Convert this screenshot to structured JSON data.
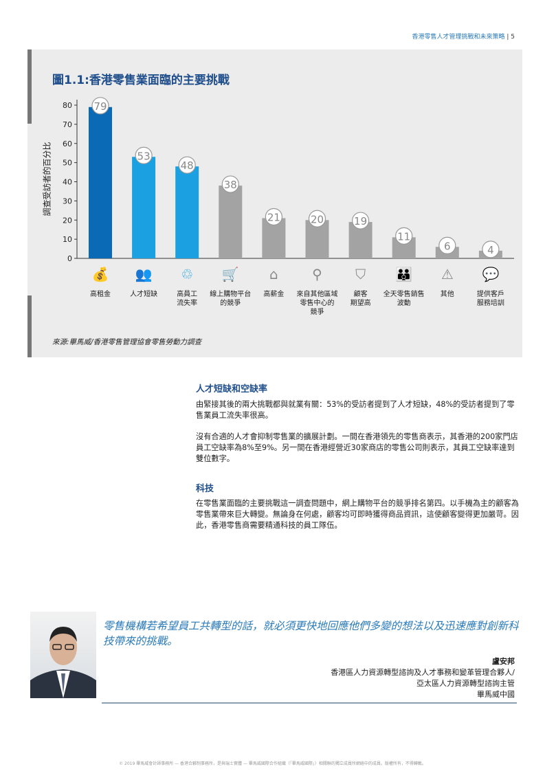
{
  "header": {
    "title": "香港零售人才管理挑戰和未來策略",
    "page": "5"
  },
  "figure": {
    "title": "圖1.1:香港零售業面臨的主要挑戰",
    "source": "來源:畢馬威/香港零售管理協會零售勞動力調查"
  },
  "chart_data": {
    "type": "bar",
    "title": "圖1.1:香港零售業面臨的主要挑戰",
    "ylabel": "調查受訪者的百分比",
    "ylim": [
      0,
      80
    ],
    "yticks": [
      0,
      10,
      20,
      30,
      40,
      50,
      60,
      70,
      80
    ],
    "categories": [
      "高租金",
      "人才短缺",
      "高員工流失率",
      "線上購物平台的競爭",
      "高薪金",
      "來自其他區域零售中心的競爭",
      "顧客期望高",
      "全天零售銷售波動",
      "其他",
      "提供客戶服務培訓"
    ],
    "category_lines": [
      [
        "高租金"
      ],
      [
        "人才短缺"
      ],
      [
        "高員工",
        "流失率"
      ],
      [
        "線上購物平台",
        "的競爭"
      ],
      [
        "高薪金"
      ],
      [
        "來自其他區域",
        "零售中心的",
        "競爭"
      ],
      [
        "顧客",
        "期望高"
      ],
      [
        "全天零售銷售",
        "波動"
      ],
      [
        "其他"
      ],
      [
        "提供客戶",
        "服務培訓"
      ]
    ],
    "values": [
      79,
      53,
      48,
      38,
      21,
      20,
      19,
      11,
      6,
      4
    ],
    "icons": [
      "coins-hand-icon",
      "people-group-icon",
      "people-cycle-icon",
      "shopping-cart-screen-icon",
      "house-dollar-icon",
      "location-pin-icon",
      "shield-check-icon",
      "crowd-icon",
      "warning-triangle-icon",
      "people-chat-icon"
    ],
    "colors": [
      "#0b6ab5",
      "#1ba1e2",
      "#1ba1e2",
      "#a3a3a3",
      "#a3a3a3",
      "#a3a3a3",
      "#a3a3a3",
      "#a3a3a3",
      "#a3a3a3",
      "#a3a3a3"
    ],
    "grid": false
  },
  "section1": {
    "heading": "人才短缺和空缺率",
    "p1": "由緊接其後的兩大挑戰都與就業有關：53%的受訪者提到了人才短缺，48%的受訪者提到了零售業員工流失率很高。",
    "p2": "沒有合適的人才會抑制零售業的擴展計劃。一間在香港領先的零售商表示，其香港的200家門店員工空缺率為8%至9%。另一間在香港經營近30家商店的零售公司則表示，其員工空缺率達到雙位數字。"
  },
  "section2": {
    "heading": "科技",
    "p1": "在零售業面臨的主要挑戰這一調查問題中，網上購物平台的競爭排名第四。以手機為主的顧客為零售業帶來巨大轉變。無論身在何處，顧客均可即時獲得商品資訊，這使顧客變得更加嚴苛。因此，香港零售商需要精通科技的員工隊伍。"
  },
  "quote": {
    "text": "零售機構若希望員工共轉型的話，就必須更快地回應他們多變的想法以及迅速應對創新科技帶來的挑戰。",
    "name": "盧安邦",
    "title1": "香港區人力資源轉型諮詢及人才事務和變革管理合夥人/",
    "title2": "亞太區人力資源轉型諮詢主管",
    "org": "畢馬威中國"
  },
  "footer": "© 2019 畢馬威會計師事務所 — 香港合夥制事務所，是與瑞士實體 — 畢馬威國際合作組織（「畢馬威國際」）相關聯的獨立成員所網絡中的成員。版權所有，不得轉載。"
}
